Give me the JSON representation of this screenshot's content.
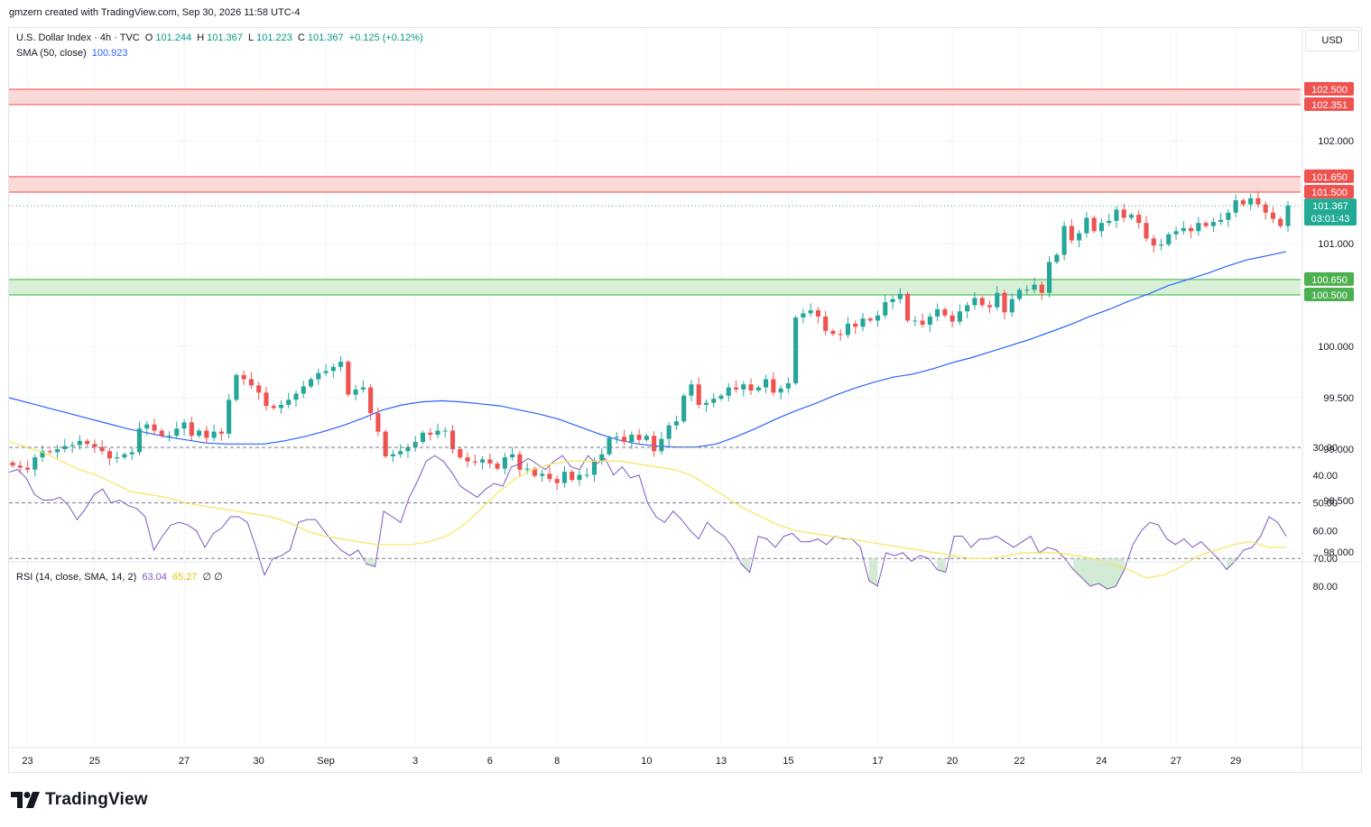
{
  "header": {
    "created_note": "gmzern created with TradingView.com, Sep 30, 2026 11:58 UTC-4"
  },
  "legend": {
    "symbol": "U.S. Dollar Index · 4h · TVC",
    "open_label": "O",
    "open": "101.244",
    "high_label": "H",
    "high": "101.367",
    "low_label": "L",
    "low": "101.223",
    "close_label": "C",
    "close": "101.367",
    "change": "+0.125 (+0.12%)",
    "sma_label": "SMA (50, close)",
    "sma_value": "100.923",
    "rsi_label": "RSI (14, close, SMA, 14, 2)",
    "rsi_value": "63.04",
    "rsi_sma_value": "65.27",
    "rsi_extra": "∅ ∅"
  },
  "currency": "USD",
  "brand": {
    "name": "TradingView",
    "icon": "tradingview-logo-icon"
  },
  "colors": {
    "up": "#26a69a",
    "down": "#ef5350",
    "sma": "#2962ff",
    "rsi": "#7e57c2",
    "rsi_sma": "#f5e65b",
    "resistance_fill": "#fcd9d9",
    "resistance_line": "#f06a6a",
    "support_fill": "#d8f0d8",
    "support_line": "#5cbf5c",
    "last_price": "#22ab94"
  },
  "chart_data": {
    "type": "candlestick",
    "symbol": "U.S. Dollar Index",
    "timeframe": "4h",
    "y_ticks": [
      "102.000",
      "101.000",
      "100.000",
      "99.500",
      "99.000",
      "98.500",
      "98.000"
    ],
    "ylim": [
      97.98,
      102.75
    ],
    "x_tick_labels": [
      "23",
      "25",
      "27",
      "30",
      "Sep",
      "3",
      "6",
      "8",
      "10",
      "13",
      "15",
      "17",
      "20",
      "22",
      "24",
      "27",
      "29"
    ],
    "x_tick_index": [
      2,
      11,
      23,
      33,
      42,
      54,
      64,
      73,
      85,
      95,
      104,
      116,
      126,
      135,
      146,
      156,
      164
    ],
    "resistance_zones": [
      {
        "top": 102.5,
        "bottom": 102.351,
        "top_label": "102.500",
        "bottom_label": "102.351"
      },
      {
        "top": 101.65,
        "bottom": 101.5,
        "top_label": "101.650",
        "bottom_label": "101.500"
      }
    ],
    "support_zones": [
      {
        "top": 100.65,
        "bottom": 100.5,
        "top_label": "100.650",
        "bottom_label": "100.500"
      }
    ],
    "last_price": {
      "value": 101.367,
      "label": "101.367",
      "countdown": "03:01:43"
    },
    "closes": [
      98.84,
      98.82,
      98.8,
      98.92,
      98.98,
      98.97,
      99.0,
      99.03,
      99.04,
      99.08,
      99.05,
      99.02,
      98.98,
      98.91,
      98.92,
      98.95,
      98.97,
      99.2,
      99.24,
      99.18,
      99.13,
      99.13,
      99.2,
      99.26,
      99.13,
      99.18,
      99.11,
      99.17,
      99.15,
      99.48,
      99.72,
      99.68,
      99.62,
      99.55,
      99.42,
      99.4,
      99.43,
      99.48,
      99.54,
      99.61,
      99.68,
      99.74,
      99.76,
      99.8,
      99.85,
      99.53,
      99.58,
      99.6,
      99.35,
      99.17,
      98.93,
      98.95,
      98.98,
      99.02,
      99.07,
      99.16,
      99.14,
      99.18,
      99.18,
      99.0,
      98.92,
      98.88,
      98.87,
      98.9,
      98.86,
      98.81,
      98.92,
      98.95,
      98.8,
      98.81,
      98.74,
      98.76,
      98.71,
      98.67,
      98.78,
      98.7,
      98.75,
      98.75,
      98.89,
      98.95,
      99.11,
      99.12,
      99.07,
      99.14,
      99.09,
      99.13,
      98.98,
      99.1,
      99.23,
      99.27,
      99.52,
      99.63,
      99.43,
      99.45,
      99.49,
      99.52,
      99.6,
      99.58,
      99.63,
      99.57,
      99.6,
      99.68,
      99.55,
      99.59,
      99.64,
      100.28,
      100.32,
      100.35,
      100.29,
      100.15,
      100.12,
      100.11,
      100.22,
      100.19,
      100.27,
      100.25,
      100.3,
      100.43,
      100.46,
      100.51,
      100.25,
      100.25,
      100.21,
      100.29,
      100.36,
      100.3,
      100.24,
      100.34,
      100.4,
      100.47,
      100.4,
      100.38,
      100.52,
      100.33,
      100.46,
      100.55,
      100.55,
      100.6,
      100.52,
      100.82,
      100.89,
      101.17,
      101.03,
      101.1,
      101.25,
      101.12,
      101.2,
      101.22,
      101.33,
      101.25,
      101.28,
      101.2,
      101.05,
      100.98,
      100.99,
      101.09,
      101.12,
      101.15,
      101.12,
      101.2,
      101.17,
      101.21,
      101.23,
      101.3,
      101.42,
      101.38,
      101.44,
      101.38,
      101.3,
      101.24,
      101.17,
      101.37
    ],
    "sma_50": [
      99.5,
      99.45,
      99.4,
      99.35,
      99.3,
      99.25,
      99.2,
      99.16,
      99.12,
      99.09,
      99.06,
      99.05,
      99.05,
      99.05,
      99.08,
      99.12,
      99.17,
      99.23,
      99.3,
      99.38,
      99.43,
      99.46,
      99.47,
      99.46,
      99.44,
      99.42,
      99.38,
      99.34,
      99.29,
      99.22,
      99.15,
      99.09,
      99.05,
      99.03,
      99.02,
      99.02,
      99.05,
      99.12,
      99.2,
      99.29,
      99.37,
      99.44,
      99.52,
      99.59,
      99.65,
      99.7,
      99.73,
      99.78,
      99.84,
      99.89,
      99.95,
      100.01,
      100.07,
      100.14,
      100.21,
      100.29,
      100.36,
      100.44,
      100.51,
      100.59,
      100.65,
      100.71,
      100.78,
      100.84,
      100.88,
      100.92
    ],
    "rsi_14": [
      39,
      38,
      41,
      47,
      49,
      49,
      48,
      51,
      56,
      52,
      47,
      45,
      50,
      49,
      51,
      52,
      55,
      67,
      62,
      58,
      57,
      58,
      60,
      66,
      61,
      59,
      55,
      55,
      57,
      66,
      76,
      70,
      69,
      67,
      57,
      56,
      56,
      60,
      64,
      67,
      69,
      67,
      72,
      73,
      53,
      55,
      57,
      48,
      42,
      35,
      33,
      35,
      39,
      44,
      46,
      48,
      45,
      43,
      44,
      37,
      36,
      34,
      36,
      38,
      35,
      33,
      37,
      38,
      33,
      36,
      34,
      40,
      37,
      41,
      40,
      50,
      55,
      57,
      53,
      56,
      60,
      63,
      57,
      60,
      62,
      66,
      72,
      75,
      62,
      63,
      66,
      62,
      61,
      64,
      64,
      63,
      65,
      62,
      63,
      63,
      66,
      78,
      80,
      68,
      69,
      68,
      71,
      69,
      70,
      74,
      75,
      62,
      62,
      66,
      63,
      63,
      62,
      64,
      66,
      64,
      62,
      68,
      66,
      67,
      70,
      74,
      77,
      80,
      79,
      81,
      80,
      74,
      65,
      60,
      57,
      58,
      63,
      65,
      63,
      66,
      64,
      67,
      70,
      74,
      71,
      67,
      66,
      62,
      55,
      57,
      62
    ],
    "rsi_sma": [
      28,
      30,
      32,
      35,
      38,
      40,
      43,
      46,
      47,
      48,
      50,
      51,
      52,
      53,
      54,
      55,
      57,
      60,
      62,
      63,
      64,
      65,
      65,
      65,
      64,
      62,
      58,
      52,
      46,
      41,
      38,
      36,
      35,
      35,
      35,
      35,
      36,
      37,
      38,
      40,
      44,
      48,
      52,
      55,
      58,
      60,
      61,
      62,
      63,
      64,
      65,
      66,
      67,
      68,
      69,
      70,
      70,
      69,
      68,
      68,
      68,
      69,
      70,
      72,
      74,
      77,
      76,
      73,
      69,
      67,
      65,
      64,
      66,
      66
    ]
  }
}
